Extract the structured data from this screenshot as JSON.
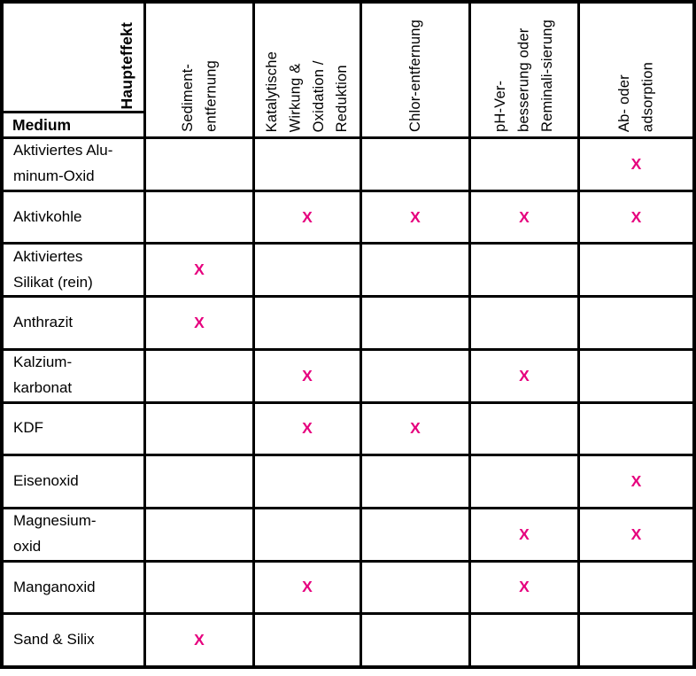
{
  "table": {
    "corner": {
      "top_label": "Haupteffekt",
      "bottom_label": "Medium"
    },
    "columns": [
      {
        "label": "Sediment-\nentfernung"
      },
      {
        "label": "Katalytische\nWirkung &\nOxidation /\nReduktion"
      },
      {
        "label": "Chlor-entfernung"
      },
      {
        "label": "pH-Ver-\nbesserung oder\nReminali-sierung"
      },
      {
        "label": "Ab- oder\nadsorption"
      }
    ],
    "mark": "X",
    "mark_color": "#E6007E",
    "rows": [
      {
        "label": "Aktiviertes Alu-\nminum-Oxid",
        "marks": [
          false,
          false,
          false,
          false,
          true
        ]
      },
      {
        "label": "Aktivkohle",
        "marks": [
          false,
          true,
          true,
          true,
          true
        ]
      },
      {
        "label": "Aktiviertes\nSilikat (rein)",
        "marks": [
          true,
          false,
          false,
          false,
          false
        ]
      },
      {
        "label": "Anthrazit",
        "marks": [
          true,
          false,
          false,
          false,
          false
        ]
      },
      {
        "label": "Kalzium-\nkarbonat",
        "marks": [
          false,
          true,
          false,
          true,
          false
        ]
      },
      {
        "label": "KDF",
        "marks": [
          false,
          true,
          true,
          false,
          false
        ]
      },
      {
        "label": "Eisenoxid",
        "marks": [
          false,
          false,
          false,
          false,
          true
        ]
      },
      {
        "label": "Magnesium-\noxid",
        "marks": [
          false,
          false,
          false,
          true,
          true
        ]
      },
      {
        "label": "Manganoxid",
        "marks": [
          false,
          true,
          false,
          true,
          false
        ]
      },
      {
        "label": "Sand & Silix",
        "marks": [
          true,
          false,
          false,
          false,
          false
        ]
      }
    ]
  }
}
